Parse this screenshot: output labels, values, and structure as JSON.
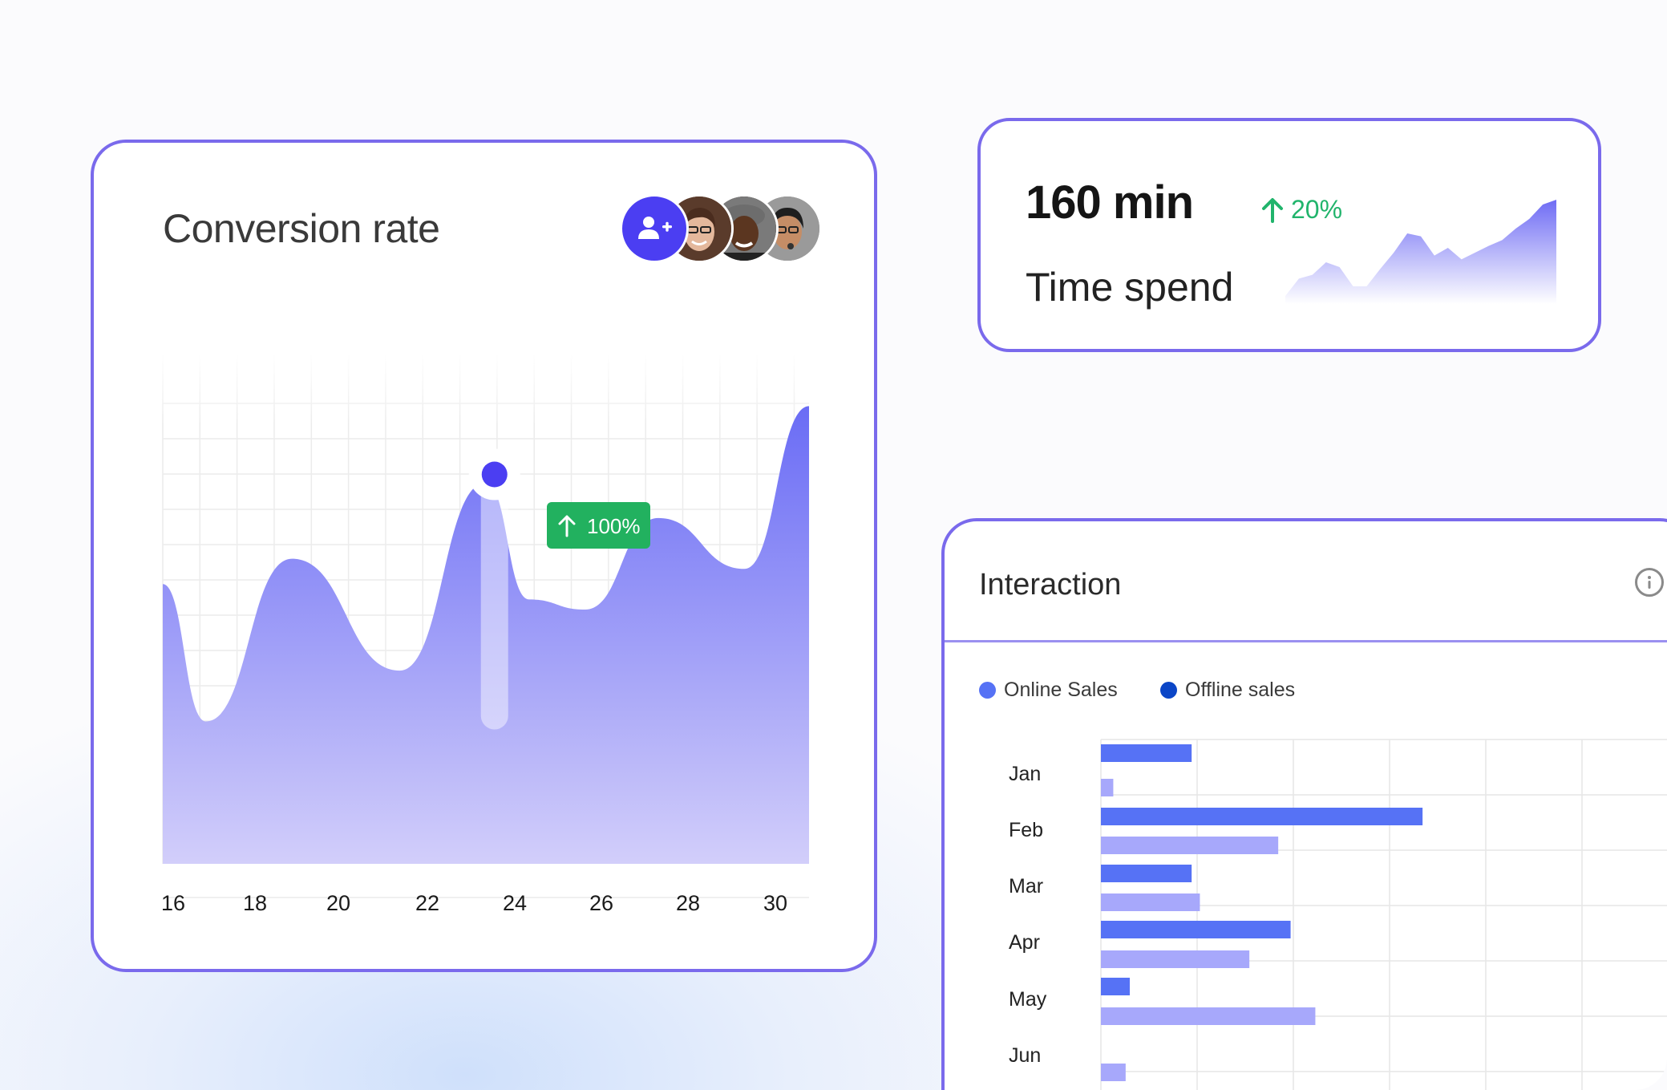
{
  "colors": {
    "accent": "#4b3ef2",
    "card_border": "#7a6aec",
    "positive": "#21b46c",
    "online_sales": "#a7a8fb",
    "offline_sales": "#5672f5"
  },
  "conversion": {
    "title": "Conversion rate",
    "add_user_icon": "add-user-icon",
    "tooltip_icon": "arrow-up-icon",
    "tooltip": "100%",
    "highlight_x": 23.7
  },
  "time_spend": {
    "value": "160 min",
    "label": "Time spend",
    "change_icon": "arrow-up-icon",
    "change": "20%"
  },
  "interaction": {
    "title": "Interaction",
    "info_icon": "info-icon",
    "legend": [
      {
        "label": "Online Sales",
        "color": "#5672f5"
      },
      {
        "label": "Offline sales",
        "color": "#0b46c7"
      }
    ]
  },
  "chart_data": [
    {
      "type": "area",
      "x_ticks": [
        "16",
        "18",
        "20",
        "22",
        "24",
        "26",
        "28",
        "30"
      ],
      "x": [
        16,
        17,
        19,
        21.5,
        23.5,
        24.5,
        25.8,
        27.5,
        29.5,
        31
      ],
      "values": [
        55,
        28,
        60,
        38,
        75,
        52,
        50,
        68,
        58,
        90
      ],
      "xlim": [
        16,
        31
      ],
      "ylim": [
        0,
        100
      ],
      "grid": true
    },
    {
      "type": "area",
      "x": [
        0,
        1,
        2,
        3,
        4,
        5,
        6,
        7,
        8,
        9,
        10,
        11,
        12,
        13,
        14,
        15,
        16,
        17,
        18,
        19,
        20
      ],
      "values": [
        0,
        18,
        22,
        35,
        30,
        10,
        10,
        28,
        45,
        65,
        62,
        42,
        50,
        38,
        45,
        52,
        58,
        70,
        80,
        95,
        100
      ],
      "ylim": [
        0,
        100
      ]
    },
    {
      "type": "bar",
      "orientation": "horizontal",
      "categories": [
        "Jan",
        "Feb",
        "Mar",
        "Apr",
        "May",
        "Jun"
      ],
      "series": [
        {
          "name": "Online Sales",
          "values": [
            3,
            43,
            24,
            36,
            52,
            6
          ]
        },
        {
          "name": "Offline sales",
          "values": [
            22,
            78,
            22,
            46,
            7,
            0
          ]
        }
      ],
      "xlim": [
        0,
        140
      ],
      "grid": true
    }
  ]
}
